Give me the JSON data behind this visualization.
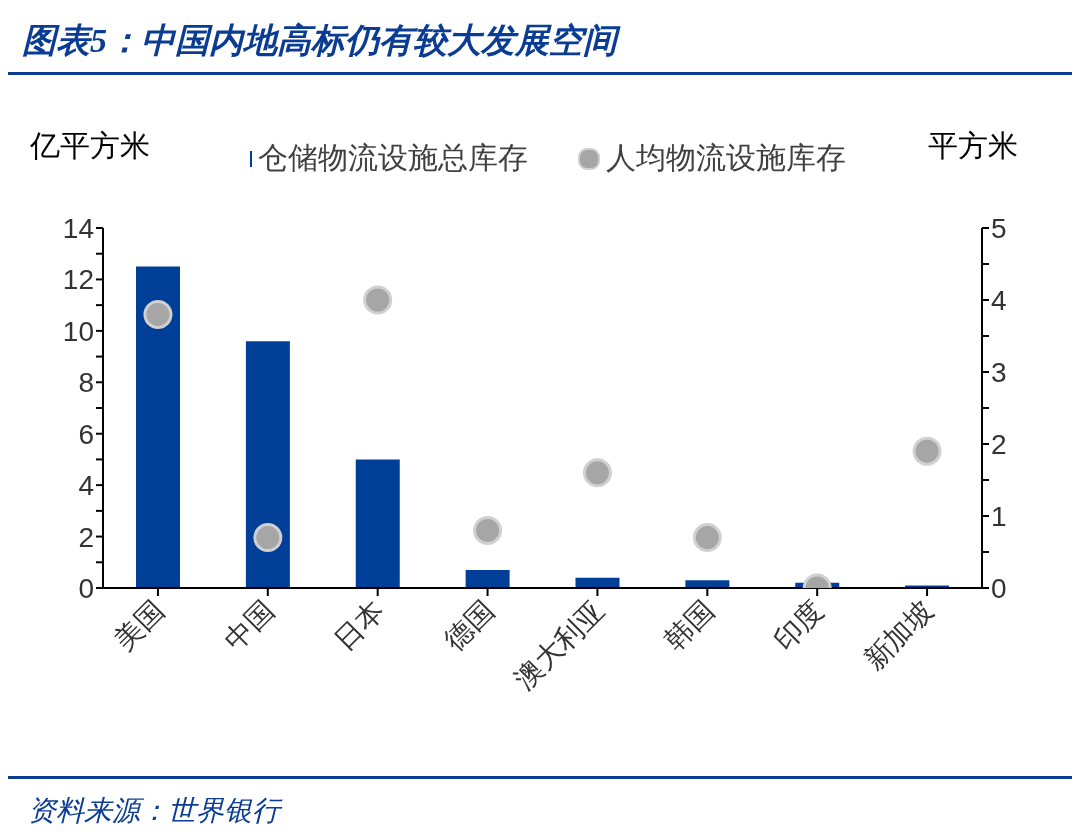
{
  "chart_data": {
    "type": "bar",
    "title": "图表5：中国内地高标仍有较大发展空间",
    "ylabel": "亿平方米",
    "y2label": "平方米",
    "categories": [
      "美国",
      "中国",
      "日本",
      "德国",
      "澳大利亚",
      "韩国",
      "印度",
      "新加坡"
    ],
    "series": [
      {
        "name": "仓储物流设施总库存",
        "color": "#003f98",
        "values": [
          12.5,
          9.6,
          5.0,
          0.7,
          0.4,
          0.3,
          0.2,
          0.1
        ]
      },
      {
        "name": "人均物流设施库存",
        "type": "scatter",
        "axis": "y2",
        "color": "#a6a6a6",
        "values": [
          3.8,
          0.7,
          4.0,
          0.8,
          1.6,
          0.7,
          0.0,
          1.9
        ]
      }
    ],
    "ylim": [
      0,
      14
    ],
    "yticks": [
      0,
      {
        "value": 1,
        "label": null
      },
      2,
      {
        "value": 3,
        "label": null
      },
      4,
      {
        "value": 5,
        "label": null
      },
      6,
      {
        "value": 7,
        "label": null
      },
      8,
      {
        "value": 9,
        "label": null
      },
      10,
      {
        "value": 11,
        "label": null
      },
      12,
      {
        "value": 13,
        "label": null
      },
      14
    ],
    "y2lim": [
      0,
      5
    ],
    "y2ticks": [
      0,
      {
        "value": 0.5,
        "label": null
      },
      1,
      {
        "value": 1.5,
        "label": null
      },
      2,
      {
        "value": 2.5,
        "label": null
      },
      3,
      {
        "value": 3.5,
        "label": null
      },
      4,
      {
        "value": 4.5,
        "label": null
      },
      5
    ],
    "grid": false,
    "legend": "top",
    "marker": "circle",
    "annotations": [
      "资料来源：世界银行"
    ]
  }
}
